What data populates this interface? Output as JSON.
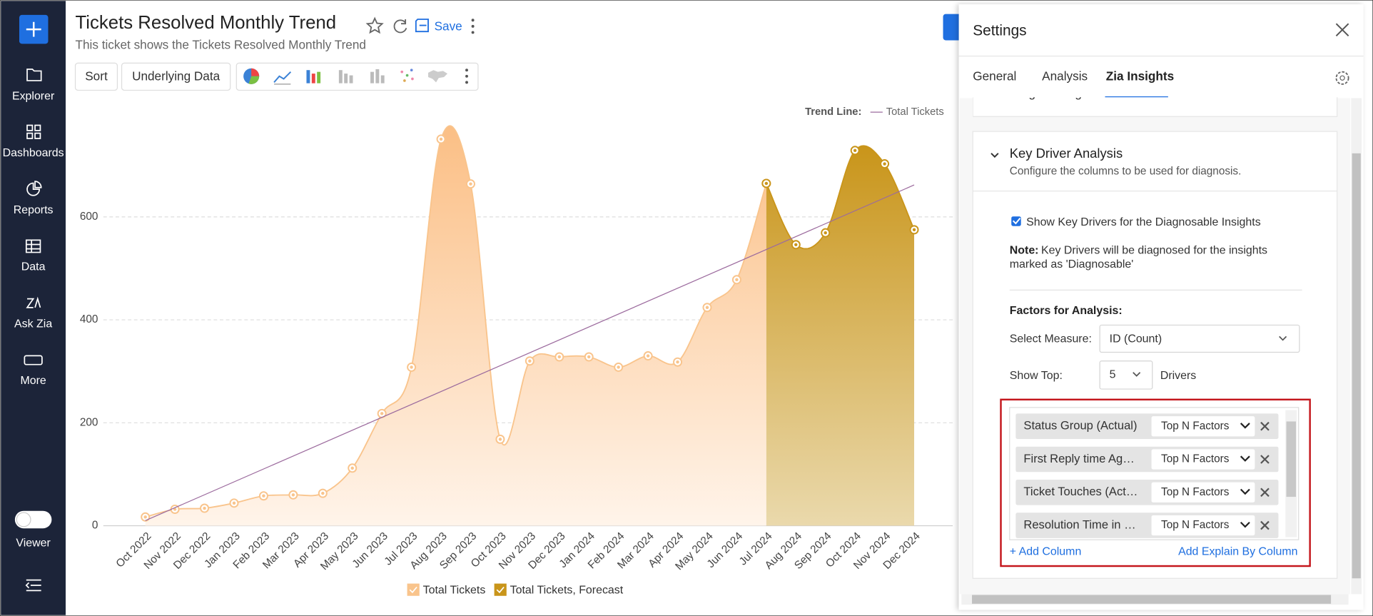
{
  "sidebar": {
    "items": [
      "Explorer",
      "Dashboards",
      "Reports",
      "Data",
      "Ask Zia",
      "More"
    ],
    "toggle_label": "Viewer"
  },
  "header": {
    "title": "Tickets Resolved Monthly Trend",
    "subtitle": "This ticket shows the Tickets Resolved Monthly Trend",
    "save": "Save"
  },
  "toolbar": {
    "buttons": [
      "Sort",
      "Underlying Data"
    ]
  },
  "chart_data": {
    "type": "area",
    "categories": [
      "Oct 2022",
      "Nov 2022",
      "Dec 2022",
      "Jan 2023",
      "Feb 2023",
      "Mar 2023",
      "Apr 2023",
      "May 2023",
      "Jun 2023",
      "Jul 2023",
      "Aug 2023",
      "Sep 2023",
      "Oct 2023",
      "Nov 2023",
      "Dec 2023",
      "Jan 2024",
      "Feb 2024",
      "Mar 2024",
      "Apr 2024",
      "May 2024",
      "Jun 2024",
      "Jul 2024",
      "Aug 2024",
      "Sep 2024",
      "Oct 2024",
      "Nov 2024",
      "Dec 2024"
    ],
    "series": [
      {
        "name": "Total Tickets",
        "color": "#f9c48c",
        "values": [
          17,
          32,
          34,
          44,
          58,
          60,
          63,
          112,
          218,
          308,
          751,
          664,
          168,
          320,
          328,
          328,
          308,
          330,
          318,
          424,
          478,
          665,
          null,
          null,
          null,
          null,
          null
        ]
      },
      {
        "name": "Total Tickets, Forecast",
        "color": "#c9951a",
        "values": [
          null,
          null,
          null,
          null,
          null,
          null,
          null,
          null,
          null,
          null,
          null,
          null,
          null,
          null,
          null,
          null,
          null,
          null,
          null,
          null,
          null,
          665,
          546,
          569,
          729,
          703,
          575
        ]
      }
    ],
    "trend_line": {
      "label": "Trend Line:",
      "name": "Total Tickets",
      "color": "#9c6b9e",
      "values": [
        10,
        662
      ]
    },
    "ylim": [
      0,
      800
    ],
    "yticks": [
      0,
      200,
      400,
      600
    ],
    "grid": true
  },
  "settings": {
    "title": "Settings",
    "tabs": [
      "General",
      "Analysis",
      "Zia Insights"
    ],
    "collapsed_section": "Insight Categories",
    "key_driver": {
      "title": "Key Driver Analysis",
      "description": "Configure the columns to be used for diagnosis.",
      "checkbox_label": "Show Key Drivers for the Diagnosable Insights",
      "note_label": "Note:",
      "note_text": [
        "Key Drivers will be diagnosed for the insights",
        "marked as 'Diagnosable'"
      ],
      "factors_title": "Factors for Analysis:",
      "measure_label": "Select Measure:",
      "measure_value": "ID (Count)",
      "top_label": "Show Top:",
      "top_value": "5",
      "drivers_label": "Drivers",
      "columns": [
        {
          "name": "Status Group (Actual)",
          "mode": "Top N Factors"
        },
        {
          "name": "First Reply time Ag…",
          "mode": "Top N Factors"
        },
        {
          "name": "Ticket Touches (Act…",
          "mode": "Top N Factors"
        },
        {
          "name": "Resolution Time in …",
          "mode": "Top N Factors"
        }
      ],
      "add_column": "+ Add Column",
      "add_explain": "Add Explain By Column"
    }
  }
}
